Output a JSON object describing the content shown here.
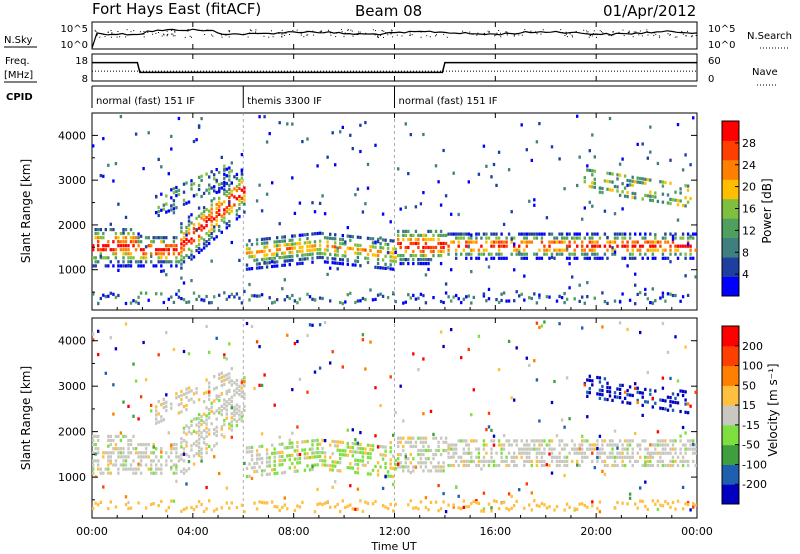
{
  "header": {
    "station": "Fort Hays East (fitACF)",
    "beam": "Beam 08",
    "date": "01/Apr/2012"
  },
  "top_panels": {
    "nsky_label": "N.Sky",
    "nsky_ticks": [
      "10^5",
      "10^0"
    ],
    "nsearch_label": "N.Search",
    "nsearch_ticks": [
      "10^5",
      "10^0"
    ],
    "freq_label_line1": "Freq.",
    "freq_label_line2": "[MHz]",
    "freq_ticks": [
      "18",
      "8"
    ],
    "nave_label": "Nave",
    "nave_ticks": [
      "60",
      "0"
    ],
    "cpid_label": "CPID",
    "cpid_segments": [
      {
        "label": "normal (fast) 151 IF",
        "start_h": 0,
        "end_h": 6
      },
      {
        "label": "themis 3300 IF",
        "start_h": 6,
        "end_h": 12
      },
      {
        "label": "normal (fast) 151 IF",
        "start_h": 12,
        "end_h": 24
      }
    ],
    "freq_trace": [
      [
        0,
        14.8
      ],
      [
        1.8,
        14.8
      ],
      [
        1.9,
        11.2
      ],
      [
        13.9,
        11.2
      ],
      [
        14,
        14.8
      ],
      [
        24,
        14.8
      ]
    ],
    "nave_trace": [
      [
        0,
        22
      ],
      [
        24,
        22
      ]
    ]
  },
  "chart_data": [
    {
      "type": "heatmap",
      "name": "power",
      "ylabel": "Slant Range [km]",
      "yticks": [
        1000,
        2000,
        3000,
        4000
      ],
      "ylim": [
        100,
        4500
      ],
      "xlim": [
        0,
        24
      ],
      "colorbar_label": "Power [dB]",
      "colorbar_ticks": [
        4,
        8,
        12,
        16,
        20,
        24,
        28
      ],
      "colorbar_range": [
        0,
        32
      ],
      "colors": [
        "#0000ff",
        "#1f3fa0",
        "#3f7f7f",
        "#4f9f5f",
        "#7fbf3f",
        "#ffbf00",
        "#ff7f00",
        "#ff3f00",
        "#ff0000"
      ]
    },
    {
      "type": "heatmap",
      "name": "velocity",
      "ylabel": "Slant Range [km]",
      "yticks": [
        1000,
        2000,
        3000,
        4000
      ],
      "ylim": [
        100,
        4500
      ],
      "xlim": [
        0,
        24
      ],
      "colorbar_label": "Velocity [m s⁻¹]",
      "colorbar_ticks": [
        200,
        100,
        50,
        15,
        -15,
        -50,
        -100,
        -200
      ],
      "colors": [
        "#0000c0",
        "#1f5faf",
        "#3f9f3f",
        "#7fdf3f",
        "#c8c8c0",
        "#ffbf3f",
        "#ff7f00",
        "#ff3f00",
        "#ff0000"
      ]
    }
  ],
  "time_axis": {
    "label": "Time UT",
    "ticks": [
      "00:00",
      "04:00",
      "08:00",
      "12:00",
      "16:00",
      "20:00",
      "00:00"
    ]
  }
}
